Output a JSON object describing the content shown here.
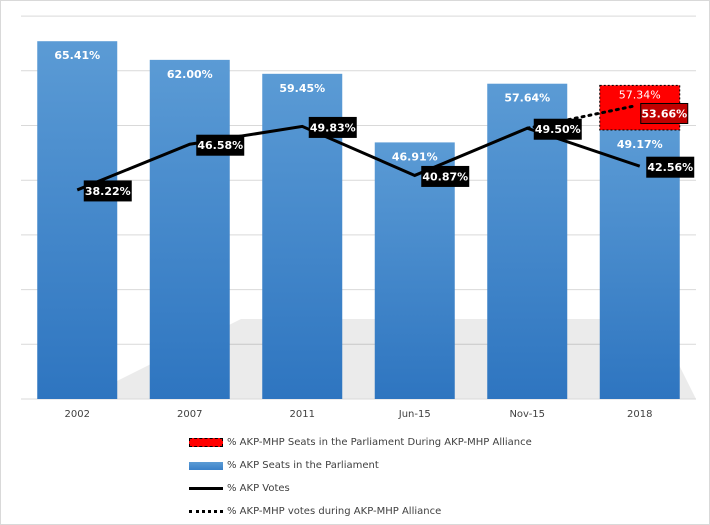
{
  "chart_data": {
    "type": "bar",
    "categories": [
      "2002",
      "2007",
      "2011",
      "Jun-15",
      "Nov-15",
      "2018"
    ],
    "ylim": [
      0,
      70
    ],
    "grid": true,
    "series": [
      {
        "name": "% AKP Seats in the Parliament",
        "type": "bar",
        "color": "#5b9bd5",
        "values": [
          65.41,
          62.0,
          59.45,
          46.91,
          57.64,
          49.17
        ],
        "labels": [
          "65.41%",
          "62.00%",
          "59.45%",
          "46.91%",
          "57.64%",
          "49.17%"
        ]
      },
      {
        "name": "% AKP-MHP Seats in the Parliament During AKP-MHP Alliance",
        "type": "bar-stacked-total",
        "color": "#ff0000",
        "values": [
          null,
          null,
          null,
          null,
          null,
          57.34
        ],
        "labels": [
          "",
          "",
          "",
          "",
          "",
          "57.34%"
        ]
      },
      {
        "name": "% AKP Votes",
        "type": "line",
        "color": "#000000",
        "values": [
          38.22,
          46.58,
          49.83,
          40.87,
          49.5,
          42.56
        ],
        "labels": [
          "38.22%",
          "46.58%",
          "49.83%",
          "40.87%",
          "49.50%",
          "42.56%"
        ]
      },
      {
        "name": "% AKP-MHP votes during AKP-MHP Alliance",
        "type": "line-dotted",
        "color": "#000000",
        "values": [
          null,
          null,
          null,
          null,
          49.5,
          53.66
        ],
        "labels": [
          "",
          "",
          "",
          "",
          "",
          "53.66%"
        ]
      }
    ],
    "legend_position": "bottom",
    "legend": [
      "% AKP-MHP Seats in the Parliament During AKP-MHP Alliance",
      "% AKP Seats in the Parliament",
      "% AKP Votes",
      "% AKP-MHP votes during AKP-MHP Alliance"
    ]
  }
}
